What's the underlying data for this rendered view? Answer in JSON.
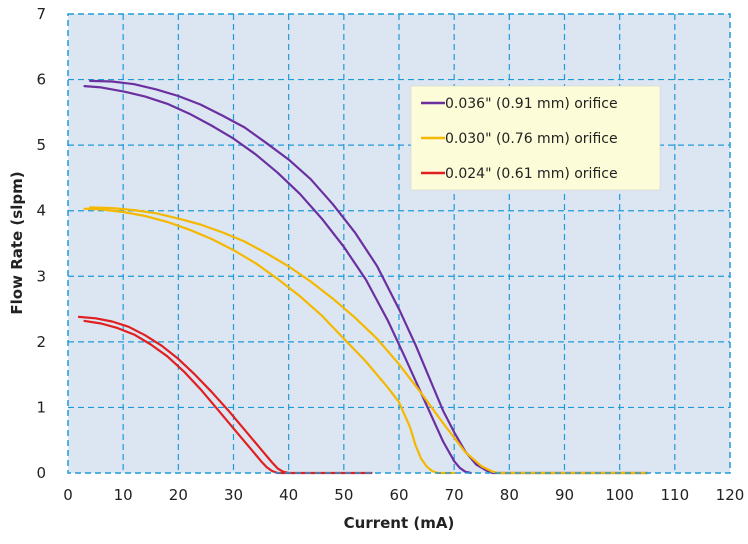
{
  "chart_data": {
    "type": "line",
    "xlabel": "Current (mA)",
    "ylabel": "Flow Rate (slpm)",
    "xlim": [
      0,
      120
    ],
    "ylim": [
      0,
      7
    ],
    "xticks": [
      0,
      10,
      20,
      30,
      40,
      50,
      60,
      70,
      80,
      90,
      100,
      110,
      120
    ],
    "yticks": [
      0,
      1,
      2,
      3,
      4,
      5,
      6,
      7
    ],
    "grid": true,
    "legend_position": "top-right",
    "colors": {
      "plot_background": "#dce6f2",
      "grid": "#1f9bd9",
      "legend_background": "#fdfcd8"
    },
    "series": [
      {
        "name": "0.036\" (0.91 mm) orifice",
        "color": "#6b2fa0",
        "curves": [
          {
            "x": [
              4,
              8,
              12,
              16,
              20,
              24,
              28,
              32,
              36,
              40,
              44,
              48,
              52,
              56,
              60,
              63,
              66,
              68,
              70,
              72,
              74,
              76,
              77,
              80,
              90,
              105
            ],
            "y": [
              5.98,
              5.97,
              5.93,
              5.85,
              5.75,
              5.62,
              5.45,
              5.27,
              5.03,
              4.78,
              4.48,
              4.1,
              3.67,
              3.16,
              2.5,
              1.95,
              1.35,
              0.95,
              0.62,
              0.33,
              0.13,
              0.03,
              0,
              0,
              0,
              0
            ]
          },
          {
            "x": [
              3,
              6,
              10,
              14,
              18,
              22,
              26,
              30,
              34,
              38,
              42,
              46,
              50,
              54,
              58,
              61,
              64,
              66,
              68,
              70,
              71,
              72,
              73
            ],
            "y": [
              5.9,
              5.88,
              5.82,
              5.74,
              5.63,
              5.48,
              5.3,
              5.1,
              4.86,
              4.58,
              4.26,
              3.88,
              3.45,
              2.95,
              2.32,
              1.78,
              1.22,
              0.85,
              0.48,
              0.18,
              0.08,
              0.02,
              0
            ]
          }
        ]
      },
      {
        "name": "0.030\" (0.76 mm) orifice",
        "color": "#f5b800",
        "curves": [
          {
            "x": [
              4,
              8,
              12,
              16,
              20,
              24,
              28,
              32,
              36,
              40,
              44,
              48,
              52,
              56,
              60,
              64,
              68,
              72,
              75,
              77,
              78,
              80,
              90,
              100,
              105
            ],
            "y": [
              4.05,
              4.04,
              4.01,
              3.96,
              3.88,
              3.79,
              3.67,
              3.53,
              3.35,
              3.15,
              2.92,
              2.66,
              2.37,
              2.05,
              1.66,
              1.22,
              0.76,
              0.32,
              0.1,
              0.02,
              0,
              0,
              0,
              0,
              0
            ]
          },
          {
            "x": [
              3,
              6,
              10,
              14,
              18,
              22,
              26,
              30,
              34,
              38,
              42,
              46,
              50,
              54,
              58,
              60,
              62,
              63,
              64,
              65,
              66,
              67,
              68,
              70
            ],
            "y": [
              4.03,
              4.02,
              3.98,
              3.92,
              3.83,
              3.71,
              3.57,
              3.4,
              3.2,
              2.96,
              2.7,
              2.4,
              2.05,
              1.7,
              1.3,
              1.08,
              0.7,
              0.42,
              0.22,
              0.1,
              0.03,
              0,
              0,
              0
            ]
          }
        ]
      },
      {
        "name": "0.024\" (0.61 mm) orifice",
        "color": "#e02020",
        "curves": [
          {
            "x": [
              2,
              5,
              8,
              11,
              14,
              17,
              20,
              23,
              26,
              29,
              32,
              35,
              37,
              38,
              39,
              40,
              45,
              50,
              55
            ],
            "y": [
              2.38,
              2.36,
              2.31,
              2.23,
              2.1,
              1.94,
              1.74,
              1.5,
              1.24,
              0.96,
              0.66,
              0.36,
              0.16,
              0.07,
              0.02,
              0,
              0,
              0,
              0
            ]
          },
          {
            "x": [
              3,
              6,
              9,
              12,
              15,
              18,
              21,
              24,
              27,
              30,
              33,
              35,
              36,
              37,
              38,
              40
            ],
            "y": [
              2.32,
              2.28,
              2.21,
              2.11,
              1.96,
              1.78,
              1.55,
              1.28,
              0.98,
              0.68,
              0.38,
              0.18,
              0.09,
              0.03,
              0,
              0
            ]
          }
        ]
      }
    ]
  }
}
